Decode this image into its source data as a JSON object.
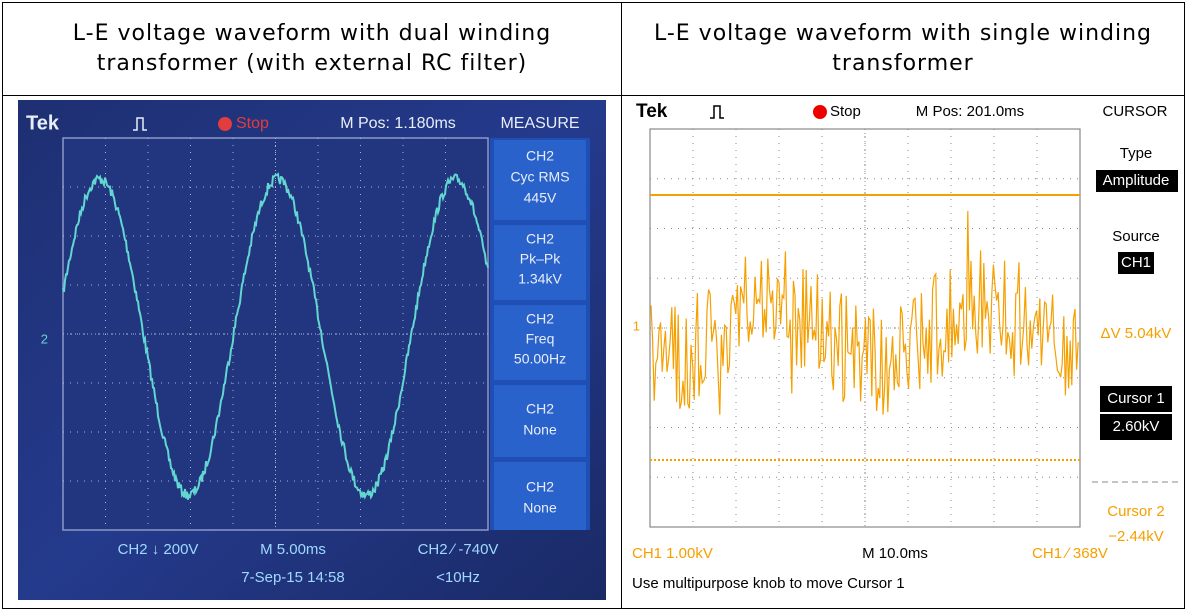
{
  "table": {
    "headers": [
      "L-E voltage waveform with dual winding transformer (with external RC filter)",
      "L-E voltage waveform with single winding transformer"
    ]
  },
  "scopes": [
    {
      "brand": "Tek",
      "state": "Stop",
      "position": "M Pos: 1.180ms",
      "menu": "MEASURE",
      "channel_marker": "2",
      "panel": [
        "CH2",
        "Cyc RMS",
        "445V",
        "CH2",
        "Pk–Pk",
        "1.34kV",
        "CH2",
        "Freq",
        "50.00Hz",
        "CH2",
        "None",
        "CH2",
        "None"
      ],
      "footer": [
        "CH2 ↓ 200V",
        "M 5.00ms",
        "CH2 ∕ -740V",
        "7-Sep-15 14:58",
        "<10Hz"
      ]
    },
    {
      "brand": "Tek",
      "state": "Stop",
      "position": "M Pos: 201.0ms",
      "menu": "CURSOR",
      "channel_marker": "1",
      "panel": [
        "Type",
        "Amplitude",
        "Source",
        "CH1",
        "ΔV 5.04kV",
        "Cursor 1",
        "2.60kV",
        "Cursor 2",
        "−2.44kV"
      ],
      "footer": [
        "CH1  1.00kV",
        "M 10.0ms",
        "CH1 ∕ 368V",
        "Use multipurpose knob to move Cursor 1"
      ]
    }
  ]
}
